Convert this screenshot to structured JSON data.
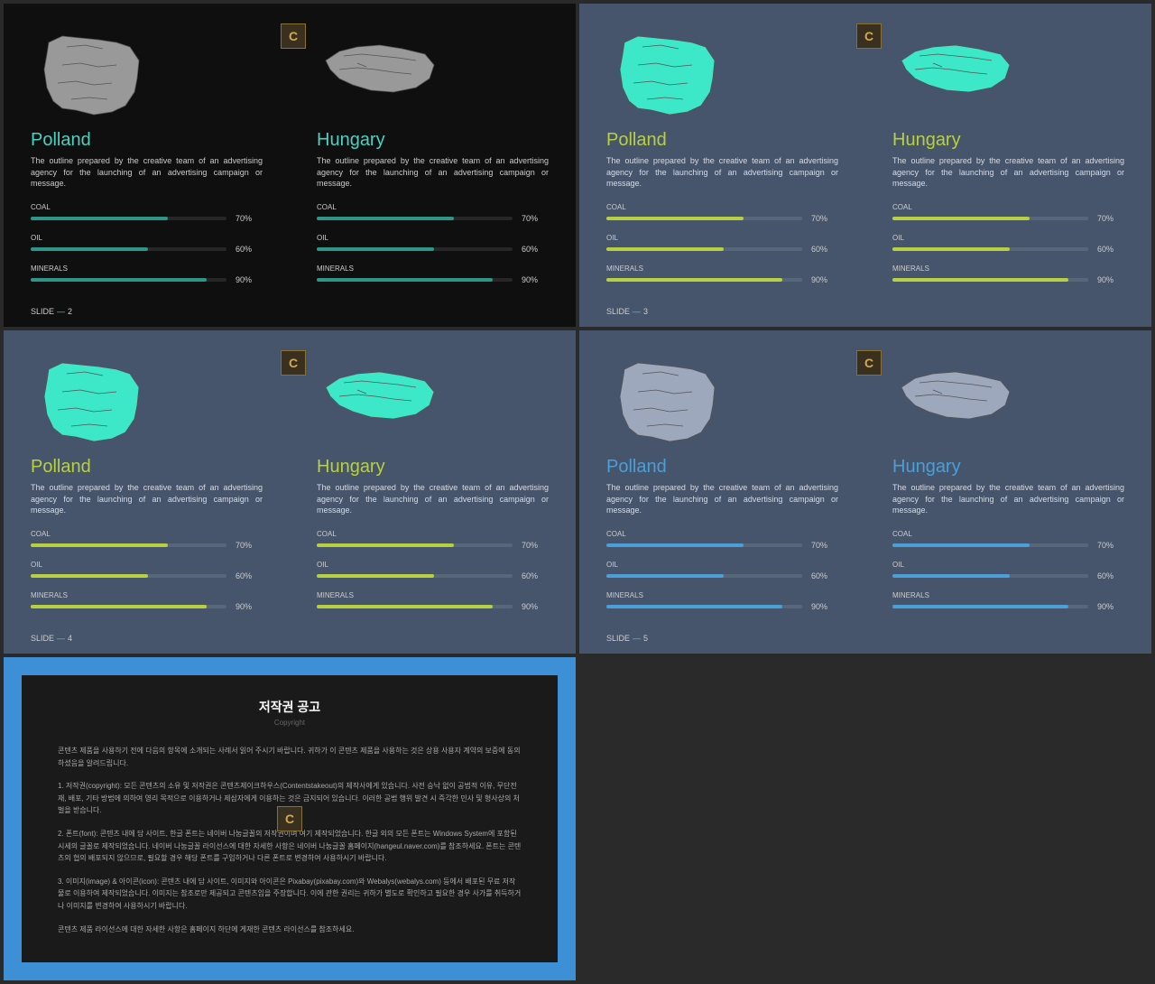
{
  "slides": [
    {
      "bg": "#0f0f0f",
      "map_fill": "#999999",
      "title_color": "#4dd0c0",
      "desc_color": "#cccccc",
      "bar_color": "#2d9688",
      "slide_num": "2"
    },
    {
      "bg": "#46556b",
      "map_fill": "#3de8c8",
      "title_color": "#b8d040",
      "desc_color": "#d8dce4",
      "bar_color": "#b8d040",
      "slide_num": "3"
    },
    {
      "bg": "#46556b",
      "map_fill": "#3de8c8",
      "title_color": "#b8d040",
      "desc_color": "#d8dce4",
      "bar_color": "#b8d040",
      "slide_num": "4"
    },
    {
      "bg": "#46556b",
      "map_fill": "#9ea8bc",
      "title_color": "#4a9fd8",
      "desc_color": "#d8dce4",
      "bar_color": "#4a9fd8",
      "slide_num": "5"
    }
  ],
  "countries": [
    {
      "name": "Polland",
      "desc": "The outline prepared by the creative team of an advertising agency for the launching of an advertising campaign or message."
    },
    {
      "name": "Hungary",
      "desc": "The outline prepared by the creative team of an advertising agency for the launching of an advertising campaign or message."
    }
  ],
  "stats": [
    {
      "label": "COAL",
      "pct": 70
    },
    {
      "label": "OIL",
      "pct": 60
    },
    {
      "label": "MINERALS",
      "pct": 90
    }
  ],
  "slide_label": "SLIDE",
  "copyright": {
    "title": "저작권 공고",
    "subtitle": "Copyright",
    "p1": "콘텐츠 제품을 사용하기 전에 다음의 항목에 소개되는 사례서 읽어 주시기 바랍니다. 귀하가 이 콘텐츠 제품을 사용하는 것은 상용 사용자 계약의 보증에 동의하셨음을 알려드립니다.",
    "p2": "1. 저작권(copyright): 모든 콘텐츠의 소유 및 저작권은 콘텐츠제이크하우스(Contentstakeout)의 제작사에게 있습니다. 사전 승낙 없이 공법적 이유, 무단전재, 배포, 기타 방법에 의하여 영리 목적으로 이용하거나 제삼자에게 이용하는 것은 금지되어 있습니다. 이러한 공법 행위 발견 시 즉각한 민사 및 형사상의 처벌을 받습니다.",
    "p3": "2. 폰트(font): 콘텐츠 내에 담 사이트, 한글 폰트는 네이버 나눔글꼴의 저작권이며 여기 제작되었습니다. 한글 외의 모든 폰트는 Windows System에 포함된 시세의 글꼴로 제작되었습니다. 네이버 나눔글꼴 라이선스에 대한 자세한 사항은 네이버 나눔글꼴 홈페이지(hangeul.naver.com)를 참조하세요. 폰트는 콘텐츠의 협의 배포되지 않으므로, 필요할 경우 해당 폰트를 구입하거나 다른 폰트로 변경하여 사용하시기 바랍니다.",
    "p4": "3. 이미지(image) & 아이콘(icon): 콘텐츠 내에 담 사이트, 이미지와 아이콘은 Pixabay(pixabay.com)와 Webalys(webalys.com) 등에서 배포된 무료 저작물로 이용하여 제작되었습니다. 이미지는 참조로만 제공되고 콘텐츠임을 주장합니다. 이에 관한 권리는 귀하가 별도로 확인하고 필요한 경우 사가를 취득하거나 이미지를 변경하여 사용하시기 바랍니다.",
    "p5": "콘텐츠 제품 라이선스에 대한 자세한 사항은 홈페이지 하단에 게재한 콘텐츠 라이선스를 참조하세요."
  }
}
